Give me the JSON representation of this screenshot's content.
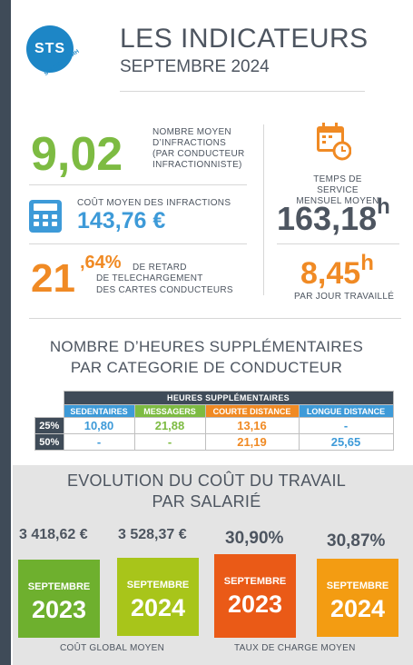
{
  "header": {
    "logo_text": "STS",
    "logo_sub": "SOLUTIONS RH",
    "title": "LES INDICATEURS",
    "subtitle": "SEPTEMBRE 2024"
  },
  "kpi": {
    "infractions_value": "9,02",
    "infractions_line1": "NOMBRE MOYEN",
    "infractions_line2": "D’INFRACTIONS",
    "infractions_line3": "(PAR CONDUCTEUR",
    "infractions_line4": "INFRACTIONNISTE)",
    "cost_label": "COÛT MOYEN DES INFRACTIONS",
    "cost_value": "143,76 €",
    "delay_int": "21",
    "delay_frac": ",64%",
    "delay_line1": "DE RETARD",
    "delay_line2": "DE TELECHARGEMENT",
    "delay_line3": "DES CARTES CONDUCTEURS",
    "service_line1": "TEMPS DE SERVICE",
    "service_line2": "MENSUEL MOYEN",
    "service_value": "163,18",
    "service_unit": "h",
    "day_value": "8,45",
    "day_unit": "h",
    "day_label": "PAR JOUR TRAVAILLÉ"
  },
  "overtime": {
    "title_line1": "NOMBRE D’HEURES SUPPLÉMENTAIRES",
    "title_line2": "PAR CATEGORIE DE CONDUCTEUR",
    "table_header": "HEURES SUPPLÉMENTAIRES",
    "columns": [
      "SEDENTAIRES",
      "MESSAGERS",
      "COURTE DISTANCE",
      "LONGUE DISTANCE"
    ],
    "rows": [
      {
        "label": "25%",
        "values": [
          "10,80",
          "21,88",
          "13,16",
          "-"
        ]
      },
      {
        "label": "50%",
        "values": [
          "-",
          "-",
          "21,19",
          "25,65"
        ]
      }
    ],
    "column_colors": [
      "#3d9ad8",
      "#7dbb42",
      "#f08a24",
      "#3d9ad8"
    ]
  },
  "evolution": {
    "title_line1": "EVOLUTION DU COÛT DU TRAVAIL",
    "title_line2": "PAR SALARIÉ",
    "cards": [
      {
        "value": "3 418,62 €",
        "month": "SEPTEMBRE",
        "year": "2023",
        "color": "#6eb02e"
      },
      {
        "value": "3 528,37 €",
        "month": "SEPTEMBRE",
        "year": "2024",
        "color": "#a8c51a"
      },
      {
        "value": "30,90%",
        "month": "SEPTEMBRE",
        "year": "2023",
        "color": "#ea5a17"
      },
      {
        "value": "30,87%",
        "month": "SEPTEMBRE",
        "year": "2024",
        "color": "#f39c12"
      }
    ],
    "label_global": "COÛT GLOBAL MOYEN",
    "label_taux": "TAUX DE CHARGE MOYEN"
  }
}
